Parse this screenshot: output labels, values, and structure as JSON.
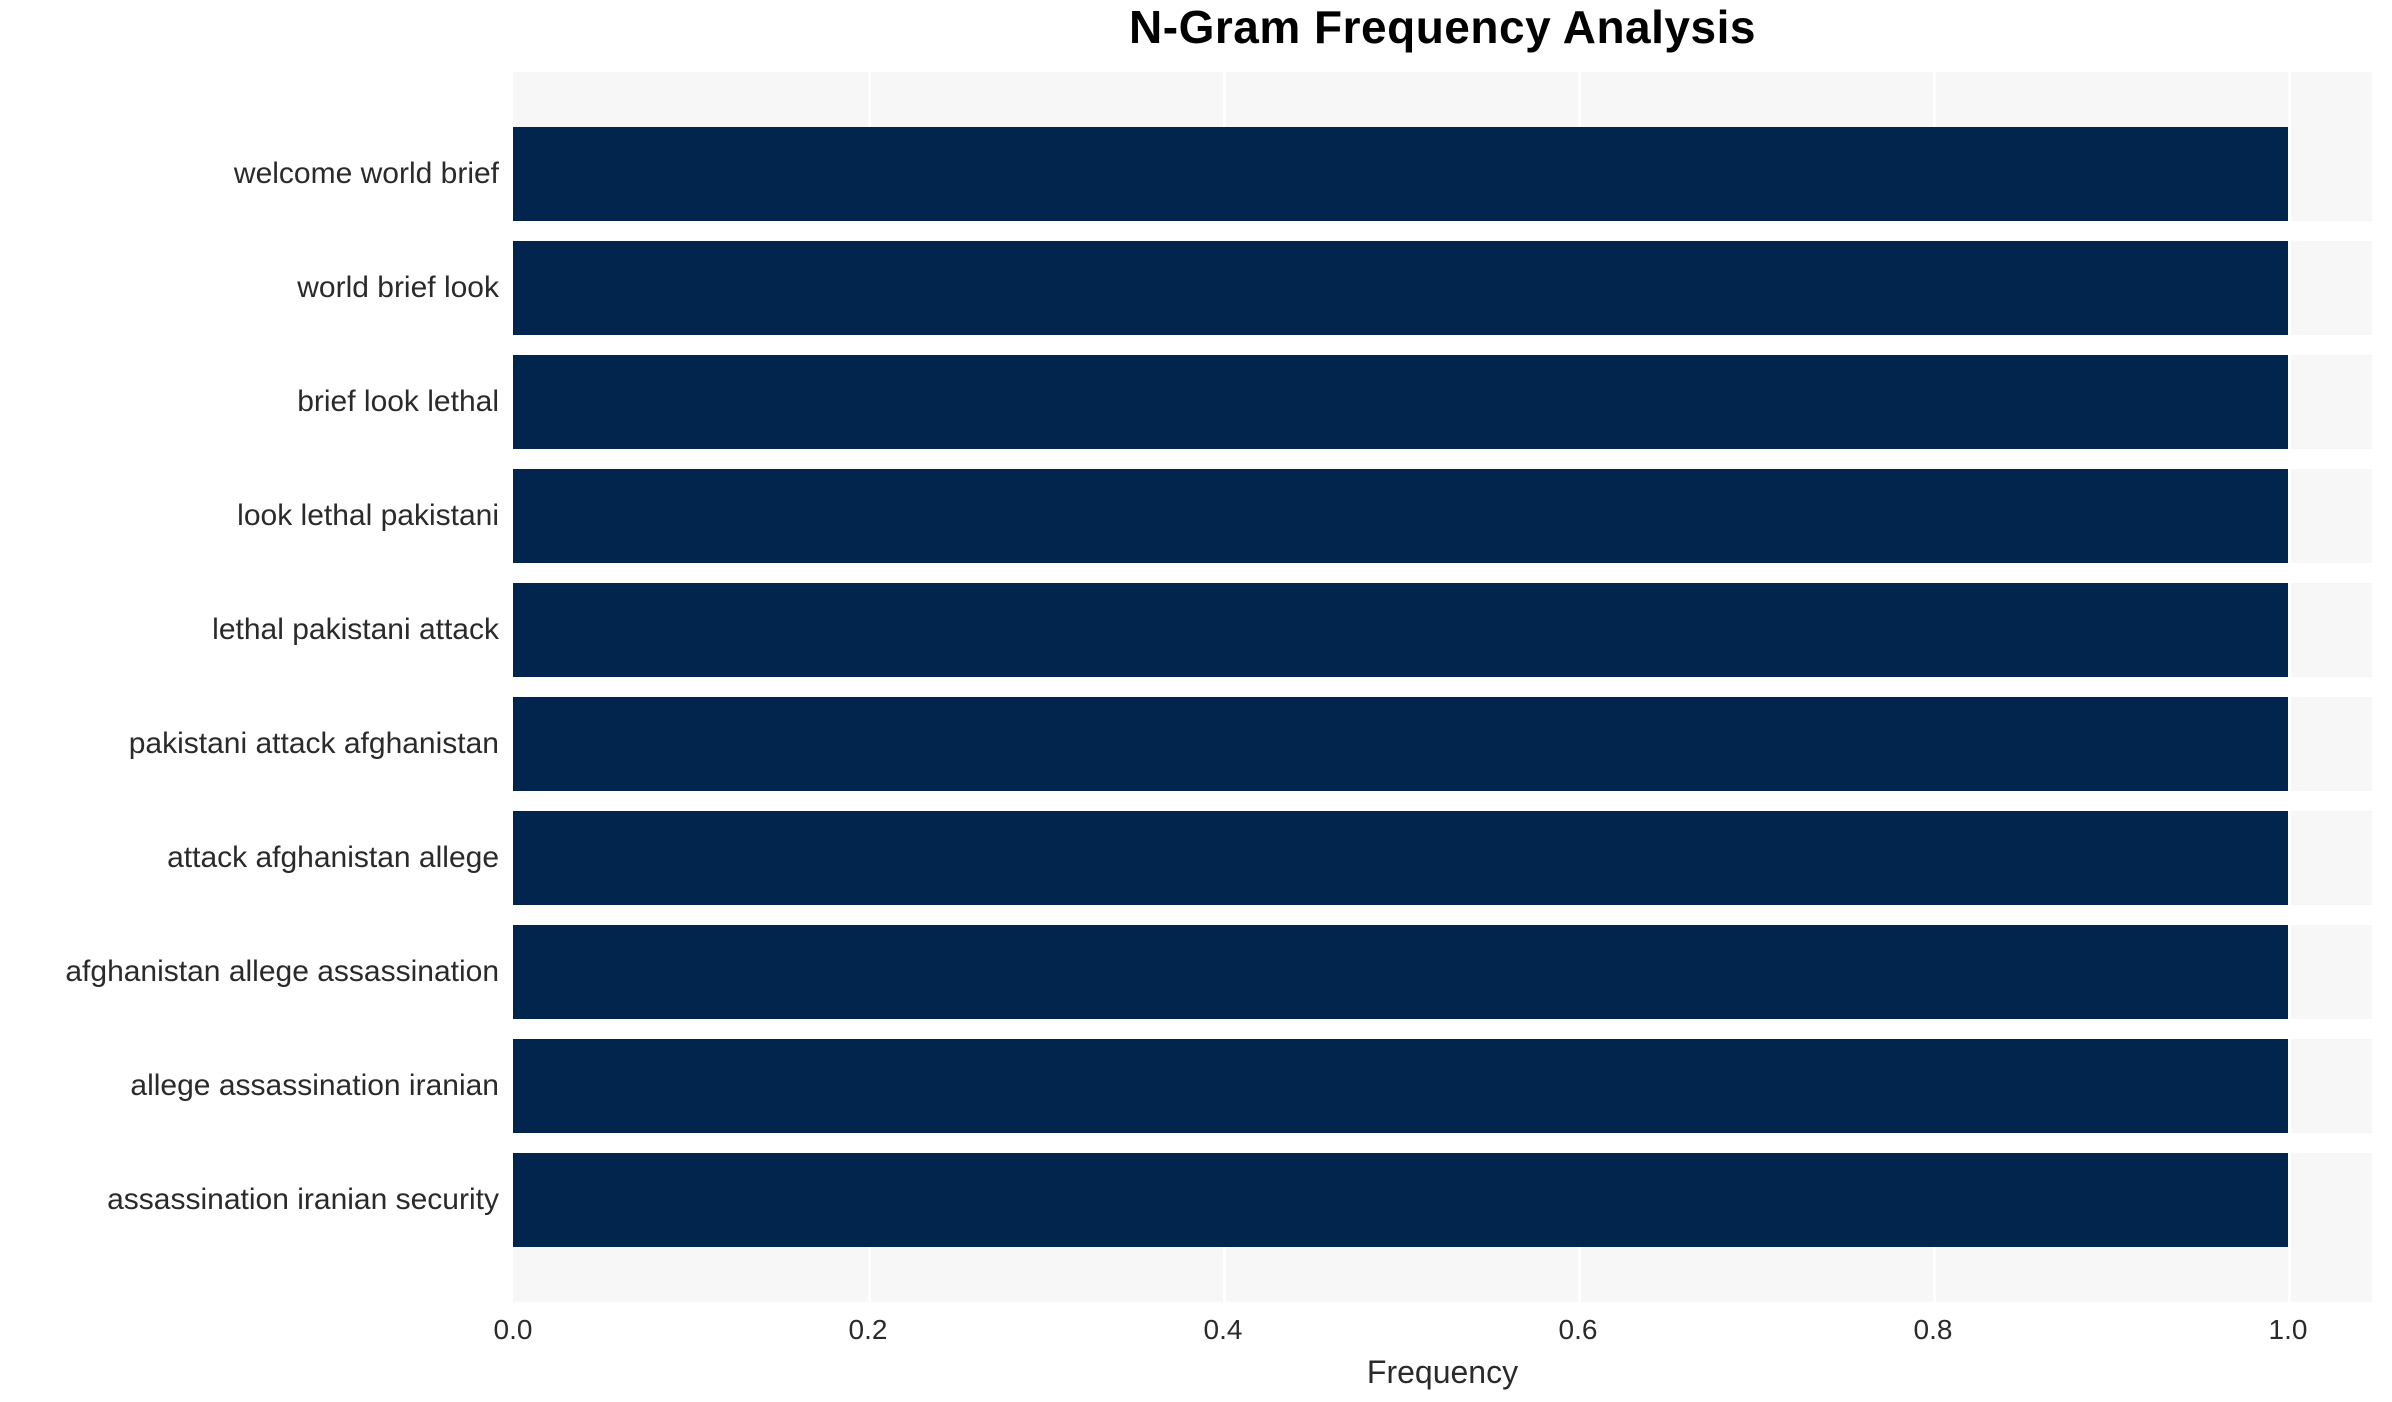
{
  "chart_data": {
    "type": "bar",
    "orientation": "horizontal",
    "title": "N-Gram Frequency Analysis",
    "xlabel": "Frequency",
    "ylabel": "",
    "categories": [
      "welcome world brief",
      "world brief look",
      "brief look lethal",
      "look lethal pakistani",
      "lethal pakistani attack",
      "pakistani attack afghanistan",
      "attack afghanistan allege",
      "afghanistan allege assassination",
      "allege assassination iranian",
      "assassination iranian security"
    ],
    "values": [
      1.0,
      1.0,
      1.0,
      1.0,
      1.0,
      1.0,
      1.0,
      1.0,
      1.0,
      1.0
    ],
    "xticks": [
      "0.0",
      "0.2",
      "0.4",
      "0.6",
      "0.8",
      "1.0"
    ],
    "xtick_values": [
      0.0,
      0.2,
      0.4,
      0.6,
      0.8,
      1.0
    ],
    "xlim": [
      0.0,
      1.047
    ],
    "grid": "white vertical gridlines on light plot background, white bands between bars",
    "legend_position": "none",
    "colors": {
      "bar": "#02254d",
      "plot_background": "#f7f7f7",
      "grid_line": "#ffffff",
      "row_gap": "#ffffff",
      "label_text": "#2a2a2a",
      "title_text": "#000000"
    }
  }
}
